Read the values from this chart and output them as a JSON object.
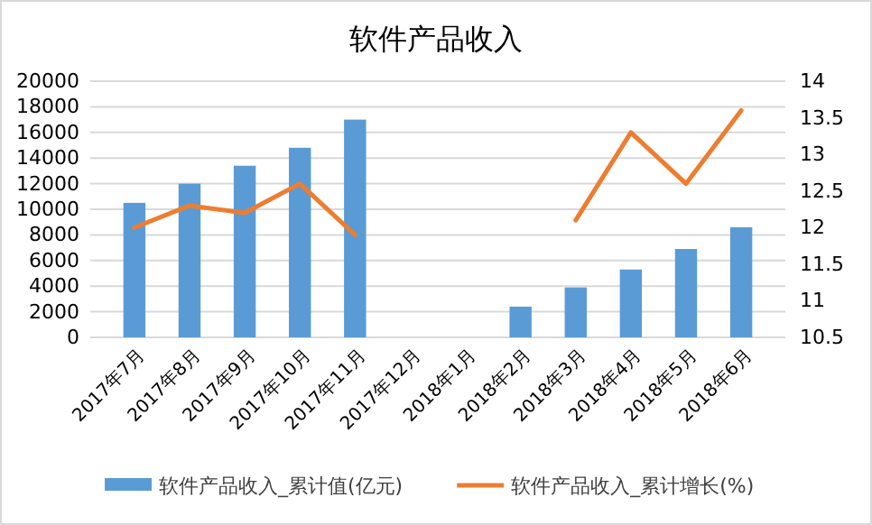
{
  "chart_data": {
    "type": "bar",
    "title": "软件产品收入",
    "categories": [
      "2017年7月",
      "2017年8月",
      "2017年9月",
      "2017年10月",
      "2017年11月",
      "2017年12月",
      "2018年1月",
      "2018年2月",
      "2018年3月",
      "2018年4月",
      "2018年5月",
      "2018年6月"
    ],
    "series": [
      {
        "name": "软件产品收入_累计值(亿元)",
        "color": "#5b9bd5",
        "values": [
          10500,
          12000,
          13400,
          14800,
          17000,
          null,
          null,
          2400,
          3900,
          5300,
          6900,
          8600
        ]
      },
      {
        "name": "软件产品收入_累计增长(%)",
        "type": "line",
        "axis": "y2",
        "color": "#ed7d31",
        "values": [
          12.0,
          12.3,
          12.2,
          12.6,
          11.9,
          null,
          null,
          null,
          12.1,
          13.3,
          12.6,
          13.6
        ]
      }
    ],
    "ylim": [
      0,
      20000
    ],
    "yticks": [
      0,
      2000,
      4000,
      6000,
      8000,
      10000,
      12000,
      14000,
      16000,
      18000,
      20000
    ],
    "y2lim": [
      10.5,
      14
    ],
    "y2ticks": [
      10.5,
      11,
      11.5,
      12,
      12.5,
      13,
      13.5,
      14
    ],
    "grid": "y",
    "legend": "bottom"
  }
}
